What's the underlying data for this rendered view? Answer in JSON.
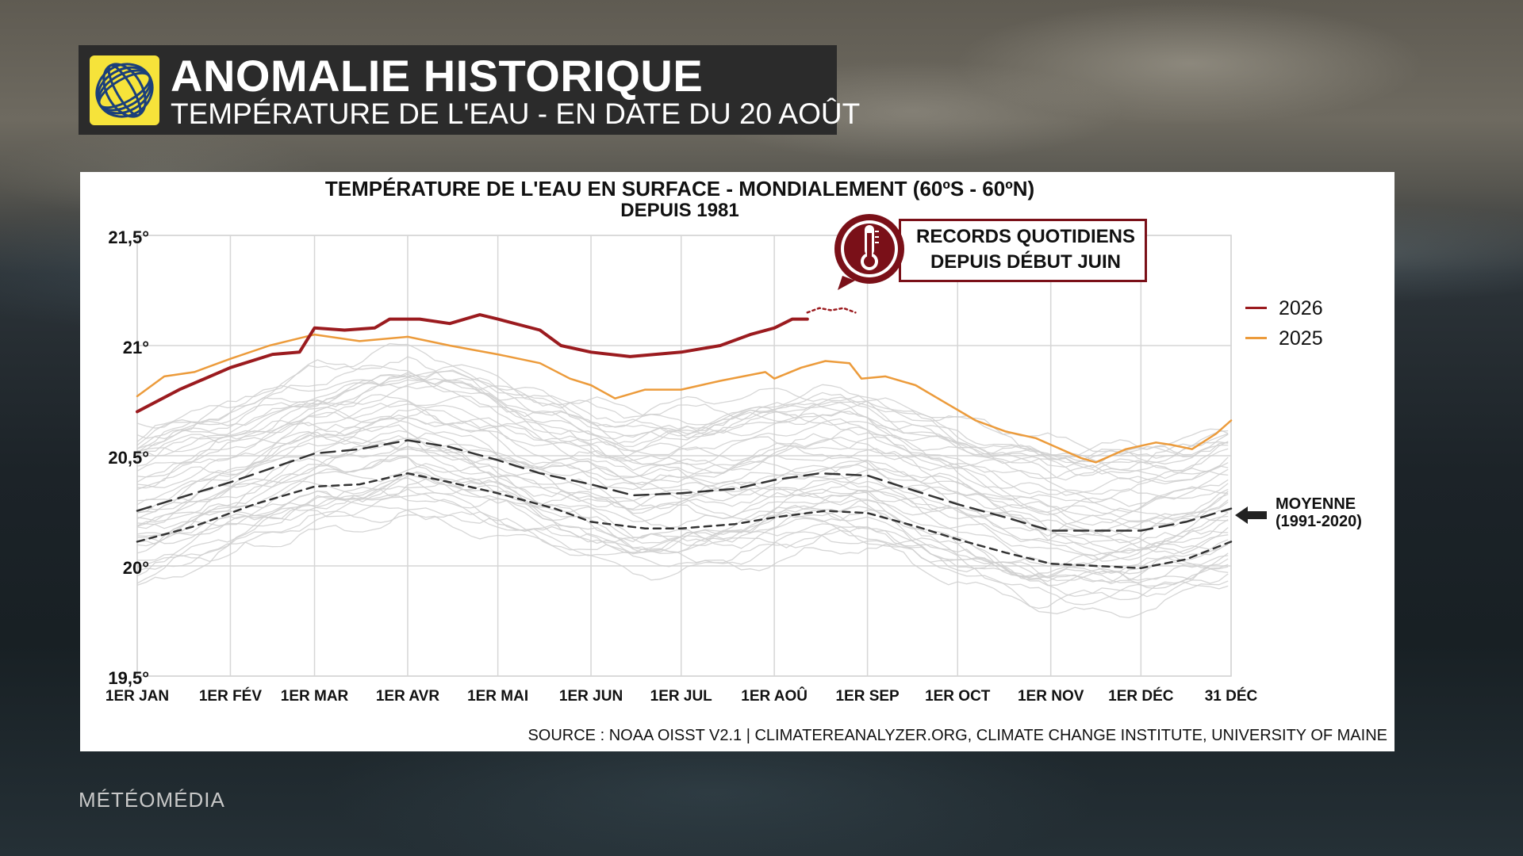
{
  "header": {
    "title": "ANOMALIE HISTORIQUE",
    "subtitle": "TEMPÉRATURE DE L'EAU - EN DATE DU 20 AOÛT"
  },
  "brand": {
    "name": "MÉTÉOMÉDIA"
  },
  "colors": {
    "series_2026": "#9b1b1f",
    "series_2025": "#ec9b3b",
    "history": "#c8c8c8",
    "mean": "#333333",
    "logo_bg": "#f6e33a"
  },
  "icons": {
    "logo": "globe-swirl-logo-icon",
    "thermometer": "thermometer-icon",
    "arrow": "arrow-left-icon"
  },
  "chart_data": {
    "type": "line",
    "title": "TEMPÉRATURE DE L'EAU EN SURFACE - MONDIALEMENT (60ºS - 60ºN)",
    "subtitle": "DEPUIS 1981",
    "source": "SOURCE : NOAA OISST V2.1 | CLIMATEREANALYZER.ORG, CLIMATE CHANGE INSTITUTE, UNIVERSITY OF MAINE",
    "x_ticks": [
      {
        "day": 1,
        "label": "1ER JAN"
      },
      {
        "day": 32,
        "label": "1ER FÉV"
      },
      {
        "day": 60,
        "label": "1ER MAR"
      },
      {
        "day": 91,
        "label": "1ER AVR"
      },
      {
        "day": 121,
        "label": "1ER MAI"
      },
      {
        "day": 152,
        "label": "1ER JUN"
      },
      {
        "day": 182,
        "label": "1ER JUL"
      },
      {
        "day": 213,
        "label": "1ER AOÛ"
      },
      {
        "day": 244,
        "label": "1ER SEP"
      },
      {
        "day": 274,
        "label": "1ER OCT"
      },
      {
        "day": 305,
        "label": "1ER NOV"
      },
      {
        "day": 335,
        "label": "1ER DÉC"
      },
      {
        "day": 365,
        "label": "31 DÉC"
      }
    ],
    "y_ticks": [
      {
        "value": 19.5,
        "label": "19,5°"
      },
      {
        "value": 20,
        "label": "20°"
      },
      {
        "value": 20.5,
        "label": "20,5°"
      },
      {
        "value": 21,
        "label": "21°"
      },
      {
        "value": 21.5,
        "label": "21,5°"
      }
    ],
    "xlim": [
      1,
      365
    ],
    "ylim": [
      19.5,
      21.5
    ],
    "grid": true,
    "legend": [
      {
        "name": "2026",
        "color": "#9b1b1f"
      },
      {
        "name": "2025",
        "color": "#ec9b3b"
      }
    ],
    "annotations": {
      "records_line1": "RECORDS QUOTIDIENS",
      "records_line2": "DEPUIS DÉBUT JUIN",
      "mean_label_line1": "MOYENNE",
      "mean_label_line2": "(1991-2020)"
    },
    "series": [
      {
        "name": "2026",
        "style": "solid-thick",
        "points": [
          [
            1,
            20.7
          ],
          [
            15,
            20.8
          ],
          [
            32,
            20.9
          ],
          [
            46,
            20.96
          ],
          [
            55,
            20.97
          ],
          [
            60,
            21.08
          ],
          [
            70,
            21.07
          ],
          [
            80,
            21.08
          ],
          [
            85,
            21.12
          ],
          [
            95,
            21.12
          ],
          [
            105,
            21.1
          ],
          [
            115,
            21.14
          ],
          [
            121,
            21.12
          ],
          [
            135,
            21.07
          ],
          [
            142,
            21.0
          ],
          [
            152,
            20.97
          ],
          [
            165,
            20.95
          ],
          [
            182,
            20.97
          ],
          [
            195,
            21.0
          ],
          [
            205,
            21.05
          ],
          [
            213,
            21.08
          ],
          [
            219,
            21.12
          ],
          [
            224,
            21.12
          ]
        ]
      },
      {
        "name": "2026-recent",
        "style": "dotted",
        "points": [
          [
            224,
            21.15
          ],
          [
            228,
            21.17
          ],
          [
            232,
            21.16
          ],
          [
            236,
            21.17
          ],
          [
            240,
            21.15
          ]
        ]
      },
      {
        "name": "2025",
        "style": "solid",
        "points": [
          [
            1,
            20.77
          ],
          [
            10,
            20.86
          ],
          [
            20,
            20.88
          ],
          [
            32,
            20.94
          ],
          [
            45,
            21.0
          ],
          [
            60,
            21.05
          ],
          [
            75,
            21.02
          ],
          [
            91,
            21.04
          ],
          [
            105,
            21.0
          ],
          [
            121,
            20.96
          ],
          [
            135,
            20.92
          ],
          [
            145,
            20.85
          ],
          [
            152,
            20.82
          ],
          [
            160,
            20.76
          ],
          [
            170,
            20.8
          ],
          [
            182,
            20.8
          ],
          [
            195,
            20.84
          ],
          [
            210,
            20.88
          ],
          [
            213,
            20.85
          ],
          [
            222,
            20.9
          ],
          [
            230,
            20.93
          ],
          [
            238,
            20.92
          ],
          [
            242,
            20.85
          ],
          [
            250,
            20.86
          ],
          [
            260,
            20.82
          ],
          [
            270,
            20.74
          ],
          [
            280,
            20.66
          ],
          [
            290,
            20.61
          ],
          [
            300,
            20.58
          ],
          [
            305,
            20.55
          ],
          [
            315,
            20.49
          ],
          [
            320,
            20.47
          ],
          [
            330,
            20.53
          ],
          [
            340,
            20.56
          ],
          [
            345,
            20.55
          ],
          [
            352,
            20.53
          ],
          [
            360,
            20.6
          ],
          [
            365,
            20.66
          ]
        ]
      },
      {
        "name": "mean-dashed-long",
        "style": "dashed",
        "points": [
          [
            1,
            20.25
          ],
          [
            32,
            20.38
          ],
          [
            60,
            20.51
          ],
          [
            75,
            20.53
          ],
          [
            91,
            20.57
          ],
          [
            105,
            20.54
          ],
          [
            121,
            20.48
          ],
          [
            135,
            20.42
          ],
          [
            152,
            20.37
          ],
          [
            166,
            20.32
          ],
          [
            182,
            20.33
          ],
          [
            200,
            20.35
          ],
          [
            213,
            20.39
          ],
          [
            228,
            20.42
          ],
          [
            244,
            20.41
          ],
          [
            260,
            20.34
          ],
          [
            274,
            20.28
          ],
          [
            290,
            20.22
          ],
          [
            305,
            20.16
          ],
          [
            320,
            20.16
          ],
          [
            335,
            20.16
          ],
          [
            350,
            20.2
          ],
          [
            365,
            20.26
          ]
        ]
      },
      {
        "name": "mean-dashed-short",
        "style": "dashed",
        "points": [
          [
            1,
            20.11
          ],
          [
            20,
            20.18
          ],
          [
            40,
            20.28
          ],
          [
            60,
            20.36
          ],
          [
            75,
            20.37
          ],
          [
            91,
            20.42
          ],
          [
            105,
            20.38
          ],
          [
            121,
            20.33
          ],
          [
            140,
            20.26
          ],
          [
            152,
            20.2
          ],
          [
            170,
            20.17
          ],
          [
            182,
            20.17
          ],
          [
            200,
            20.19
          ],
          [
            213,
            20.22
          ],
          [
            230,
            20.25
          ],
          [
            244,
            20.24
          ],
          [
            260,
            20.18
          ],
          [
            274,
            20.12
          ],
          [
            290,
            20.06
          ],
          [
            305,
            20.01
          ],
          [
            320,
            20.0
          ],
          [
            335,
            19.99
          ],
          [
            350,
            20.03
          ],
          [
            365,
            20.11
          ]
        ]
      }
    ]
  }
}
